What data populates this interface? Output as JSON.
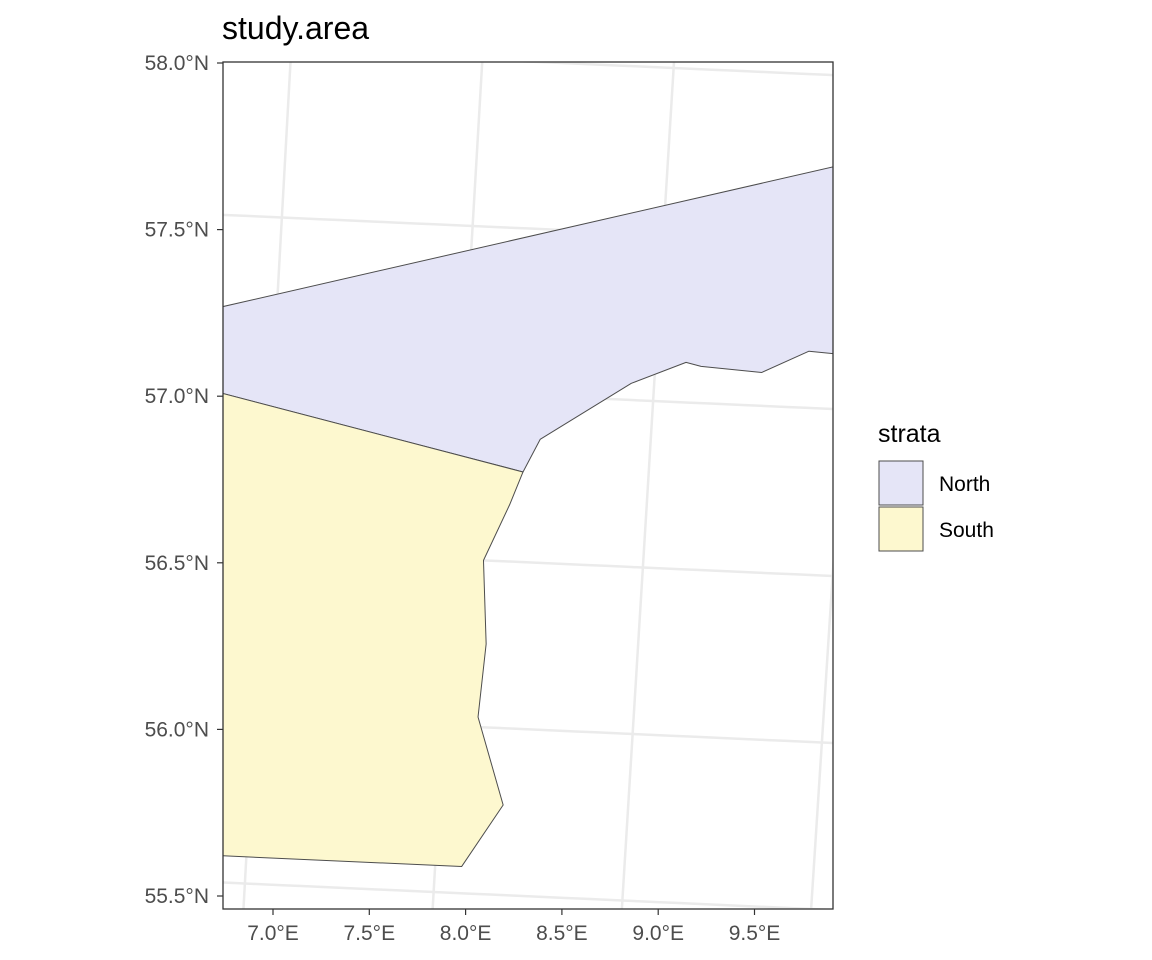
{
  "title": "study.area",
  "chart_data": {
    "type": "map",
    "title": "study.area",
    "y_ticks": [
      "58.0°N",
      "57.5°N",
      "57.0°N",
      "56.5°N",
      "56.0°N",
      "55.5°N"
    ],
    "x_ticks": [
      "7.0°E",
      "7.5°E",
      "8.0°E",
      "8.5°E",
      "9.0°E",
      "9.5°E"
    ],
    "lat_range": [
      55.5,
      58.0
    ],
    "lon_range": [
      6.8,
      9.9
    ],
    "grid": true,
    "legend": {
      "title": "strata",
      "position": "right",
      "items": [
        {
          "label": "North",
          "color": "#e5e5f7"
        },
        {
          "label": "South",
          "color": "#fdf8cf"
        }
      ]
    },
    "regions": [
      {
        "name": "North",
        "color": "#e5e5f7",
        "vertices_lon_lat": [
          [
            6.9,
            57.08
          ],
          [
            9.45,
            57.89
          ],
          [
            9.8,
            57.62
          ],
          [
            9.65,
            57.49
          ],
          [
            9.47,
            57.24
          ],
          [
            9.22,
            57.15
          ],
          [
            8.9,
            57.17
          ],
          [
            8.78,
            57.1
          ],
          [
            8.62,
            57.11
          ],
          [
            8.58,
            57.12
          ],
          [
            8.44,
            57.05
          ],
          [
            8.21,
            56.87
          ],
          [
            8.17,
            56.77
          ]
        ]
      },
      {
        "name": "South",
        "color": "#fdf8cf",
        "vertices_lon_lat": [
          [
            6.9,
            57.08
          ],
          [
            8.17,
            56.77
          ],
          [
            8.14,
            56.67
          ],
          [
            8.08,
            56.5
          ],
          [
            8.1,
            56.25
          ],
          [
            8.09,
            56.03
          ],
          [
            8.17,
            55.77
          ],
          [
            8.07,
            55.58
          ],
          [
            6.88,
            55.58
          ]
        ]
      }
    ]
  },
  "colors": {
    "panel_border": "#333333",
    "grid": "#ebebeb",
    "polygon_stroke": "#4d4d4d"
  }
}
